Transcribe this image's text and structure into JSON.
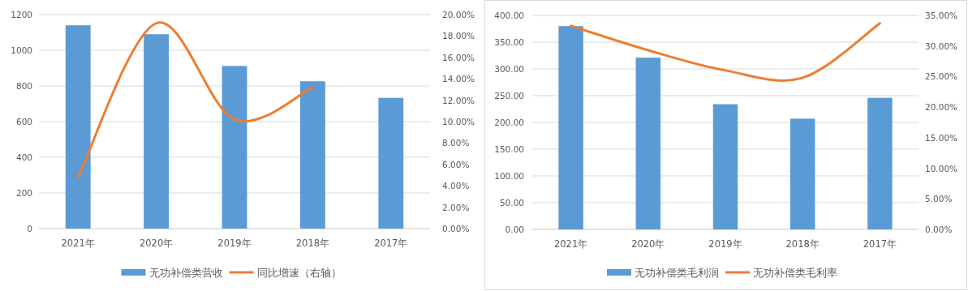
{
  "chart_data": [
    {
      "type": "bar",
      "categories": [
        "2021年",
        "2020年",
        "2019年",
        "2018年",
        "2017年"
      ],
      "ylim": [
        0,
        1200
      ],
      "yticks": [
        0,
        200,
        400,
        600,
        800,
        1000,
        1200
      ],
      "y2lim": [
        0,
        20
      ],
      "y2ticks": [
        {
          "value": 0,
          "label": "0.00%"
        },
        {
          "value": 2,
          "label": "2.00%"
        },
        {
          "value": 4,
          "label": "4.00%"
        },
        {
          "value": 6,
          "label": "6.00%"
        },
        {
          "value": 8,
          "label": "8.00%"
        },
        {
          "value": 10,
          "label": "10.00%"
        },
        {
          "value": 12,
          "label": "12.00%"
        },
        {
          "value": 14,
          "label": "14.00%"
        },
        {
          "value": 16,
          "label": "16.00%"
        },
        {
          "value": 18,
          "label": "18.00%"
        },
        {
          "value": 20,
          "label": "20.00%"
        }
      ],
      "grid": "y",
      "legend": "bottom",
      "series": [
        {
          "name": "无功补偿类营收",
          "color": "#5b9bd5",
          "values": [
            1140,
            1090,
            912,
            826,
            733
          ]
        },
        {
          "name": "同比增速（右轴）",
          "type": "line",
          "axis": "y2",
          "color": "#ed7d31",
          "values": [
            4.8,
            19.2,
            10.2,
            13.2,
            null
          ]
        }
      ]
    },
    {
      "type": "bar",
      "categories": [
        "2021年",
        "2020年",
        "2019年",
        "2018年",
        "2017年"
      ],
      "ylim": [
        0,
        400
      ],
      "yticks": [
        {
          "value": 0,
          "label": "0.00"
        },
        {
          "value": 50,
          "label": "50.00"
        },
        {
          "value": 100,
          "label": "100.00"
        },
        {
          "value": 150,
          "label": "150.00"
        },
        {
          "value": 200,
          "label": "200.00"
        },
        {
          "value": 250,
          "label": "250.00"
        },
        {
          "value": 300,
          "label": "300.00"
        },
        {
          "value": 350,
          "label": "350.00"
        },
        {
          "value": 400,
          "label": "400.00"
        }
      ],
      "y2lim": [
        0,
        35
      ],
      "y2ticks": [
        {
          "value": 0,
          "label": "0.00%"
        },
        {
          "value": 5,
          "label": "5.00%"
        },
        {
          "value": 10,
          "label": "10.00%"
        },
        {
          "value": 15,
          "label": "15.00%"
        },
        {
          "value": 20,
          "label": "20.00%"
        },
        {
          "value": 25,
          "label": "25.00%"
        },
        {
          "value": 30,
          "label": "30.00%"
        },
        {
          "value": 35,
          "label": "35.00%"
        }
      ],
      "grid": "y",
      "legend": "bottom",
      "series": [
        {
          "name": "无功补偿类毛利润",
          "color": "#5b9bd5",
          "values": [
            380,
            321,
            234,
            207,
            246
          ]
        },
        {
          "name": "无功补偿类毛利率",
          "type": "line",
          "axis": "y2",
          "color": "#ed7d31",
          "values": [
            33.3,
            29.3,
            26.0,
            24.8,
            33.7
          ]
        }
      ]
    }
  ]
}
